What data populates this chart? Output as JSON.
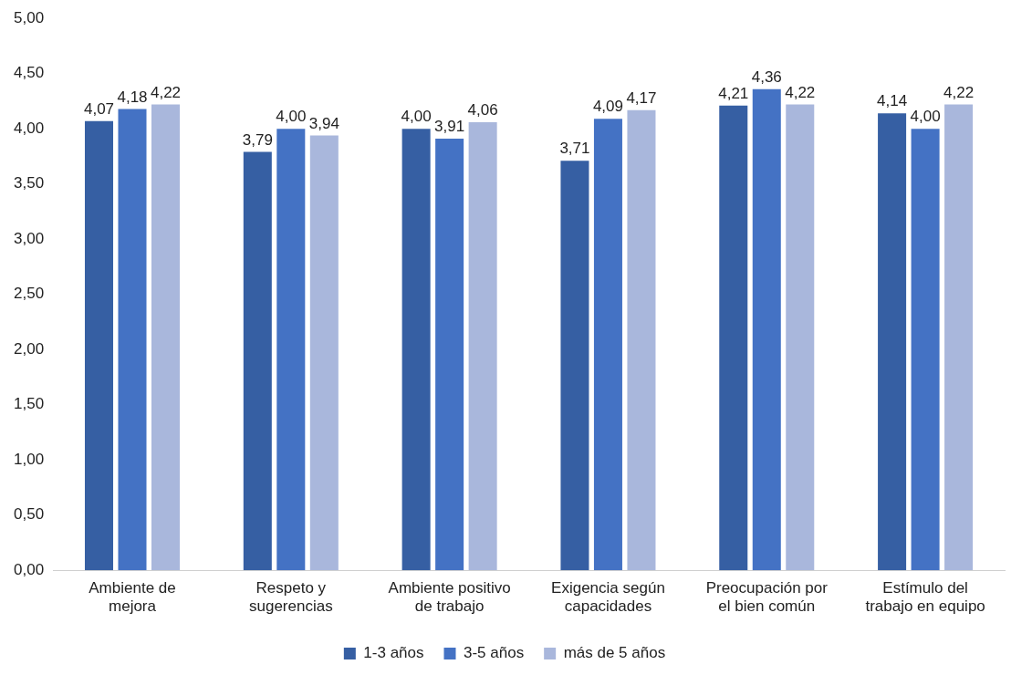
{
  "chart_data": {
    "type": "bar",
    "categories": [
      "Ambiente de mejora",
      "Respeto y sugerencias",
      "Ambiente positivo de trabajo",
      "Exigencia según capacidades",
      "Preocupación por el bien común",
      "Estímulo del trabajo en equipo"
    ],
    "series": [
      {
        "name": "1-3 años",
        "color": "#365fa3",
        "values": [
          4.07,
          3.79,
          4.0,
          3.71,
          4.21,
          4.14
        ],
        "value_labels": [
          "4,07",
          "3,79",
          "4,00",
          "3,71",
          "4,21",
          "4,14"
        ]
      },
      {
        "name": "3-5 años",
        "color": "#4472c4",
        "values": [
          4.18,
          4.0,
          3.91,
          4.09,
          4.36,
          4.0
        ],
        "value_labels": [
          "4,18",
          "4,00",
          "3,91",
          "4,09",
          "4,36",
          "4,00"
        ]
      },
      {
        "name": "más de 5 años",
        "color": "#a9b7dc",
        "values": [
          4.22,
          3.94,
          4.06,
          4.17,
          4.22,
          4.22
        ],
        "value_labels": [
          "4,22",
          "3,94",
          "4,06",
          "4,17",
          "4,22",
          "4,22"
        ]
      }
    ],
    "ylim": [
      0,
      5
    ],
    "yticks": [
      {
        "value": 0,
        "label": "0,00"
      },
      {
        "value": 0.5,
        "label": "0,50"
      },
      {
        "value": 1,
        "label": "1,00"
      },
      {
        "value": 1.5,
        "label": "1,50"
      },
      {
        "value": 2,
        "label": "2,00"
      },
      {
        "value": 2.5,
        "label": "2,50"
      },
      {
        "value": 3,
        "label": "3,00"
      },
      {
        "value": 3.5,
        "label": "3,50"
      },
      {
        "value": 4,
        "label": "4,00"
      },
      {
        "value": 4.5,
        "label": "4,50"
      },
      {
        "value": 5,
        "label": "5,00"
      }
    ],
    "grid": false,
    "legend": "bottom"
  }
}
